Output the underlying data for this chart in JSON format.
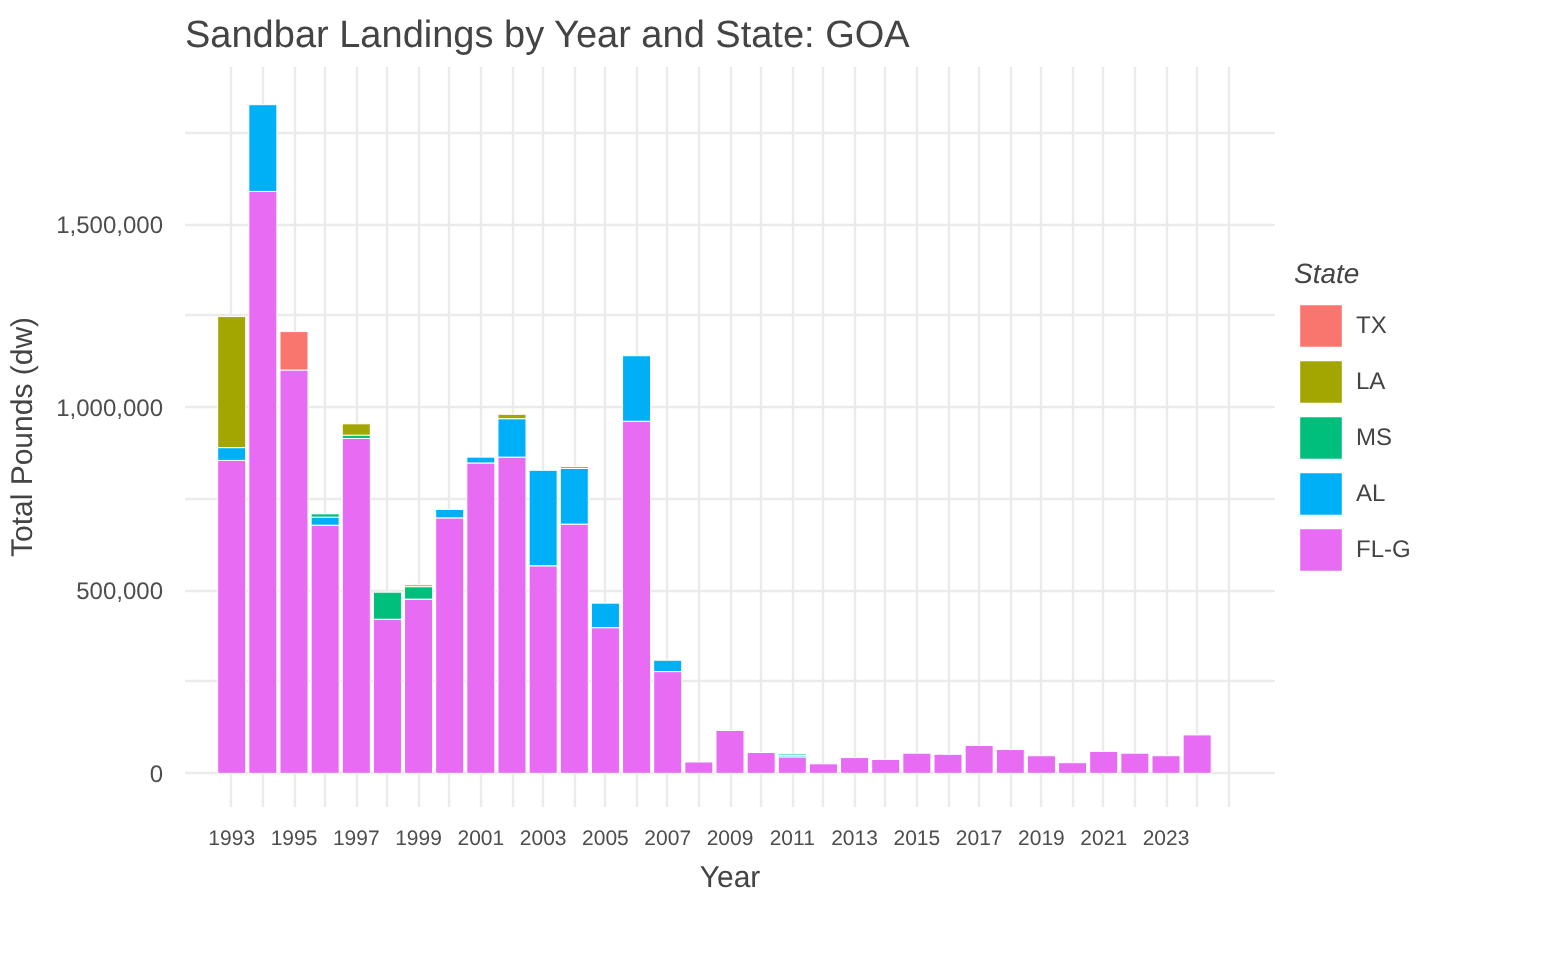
{
  "chart_data": {
    "type": "bar",
    "stacked": true,
    "title": "Sandbar Landings by Year and State: GOA",
    "xlabel": "Year",
    "ylabel": "Total Pounds (dw)",
    "legend_title": "State",
    "legend": "right",
    "grid": true,
    "x": [
      1993,
      1994,
      1995,
      1996,
      1997,
      1998,
      1999,
      2000,
      2001,
      2002,
      2003,
      2004,
      2005,
      2006,
      2007,
      2008,
      2009,
      2010,
      2011,
      2012,
      2013,
      2014,
      2015,
      2016,
      2017,
      2018,
      2019,
      2020,
      2021,
      2022,
      2023,
      2024
    ],
    "xlim": [
      1991.5,
      2026.5
    ],
    "xticks": [
      1993,
      {
        "value": 1994,
        "label": null
      },
      1995,
      {
        "value": 1996,
        "label": null
      },
      1997,
      {
        "value": 1998,
        "label": null
      },
      1999,
      {
        "value": 2000,
        "label": null
      },
      2001,
      {
        "value": 2002,
        "label": null
      },
      2003,
      {
        "value": 2004,
        "label": null
      },
      2005,
      {
        "value": 2006,
        "label": null
      },
      2007,
      {
        "value": 2008,
        "label": null
      },
      2009,
      {
        "value": 2010,
        "label": null
      },
      2011,
      {
        "value": 2012,
        "label": null
      },
      2013,
      {
        "value": 2014,
        "label": null
      },
      2015,
      {
        "value": 2016,
        "label": null
      },
      2017,
      {
        "value": 2018,
        "label": null
      },
      2019,
      {
        "value": 2020,
        "label": null
      },
      2021,
      {
        "value": 2022,
        "label": null
      },
      2023,
      {
        "value": 2024,
        "label": null
      },
      {
        "value": 2025,
        "label": null
      }
    ],
    "ylim": [
      -92000,
      1930000
    ],
    "yticks": [
      {
        "value": 0,
        "label": "0"
      },
      {
        "value": 250000,
        "label": null
      },
      {
        "value": 500000,
        "label": "500,000"
      },
      {
        "value": 750000,
        "label": null
      },
      {
        "value": 1000000,
        "label": "1,000,000"
      },
      {
        "value": 1250000,
        "label": null
      },
      {
        "value": 1500000,
        "label": "1,500,000"
      },
      {
        "value": 1750000,
        "label": null
      }
    ],
    "series": [
      {
        "name": "FL-G",
        "color": "#e76bf3",
        "values": [
          855000,
          1590000,
          1102000,
          678000,
          915000,
          421000,
          476000,
          698000,
          848000,
          864000,
          567000,
          681000,
          398000,
          962000,
          278000,
          31000,
          117000,
          57000,
          45000,
          26000,
          43000,
          38000,
          55000,
          52000,
          76000,
          65000,
          48000,
          29000,
          60000,
          55000,
          48000,
          105000
        ]
      },
      {
        "name": "AL",
        "color": "#00b0f6",
        "values": [
          35000,
          237000,
          null,
          22000,
          null,
          null,
          null,
          23000,
          16000,
          105000,
          261000,
          152000,
          67000,
          179000,
          31000,
          null,
          null,
          null,
          4000,
          null,
          null,
          null,
          null,
          null,
          null,
          null,
          null,
          null,
          null,
          null,
          null,
          null
        ]
      },
      {
        "name": "MS",
        "color": "#00bf7d",
        "values": [
          null,
          null,
          null,
          9000,
          9000,
          74000,
          34000,
          null,
          null,
          null,
          null,
          null,
          null,
          null,
          null,
          null,
          null,
          null,
          4000,
          null,
          null,
          null,
          null,
          null,
          null,
          null,
          null,
          null,
          null,
          null,
          null,
          null
        ]
      },
      {
        "name": "LA",
        "color": "#a3a500",
        "values": [
          358000,
          null,
          null,
          null,
          31000,
          null,
          5000,
          null,
          null,
          12000,
          null,
          5000,
          null,
          null,
          null,
          null,
          null,
          null,
          null,
          null,
          null,
          null,
          null,
          null,
          null,
          null,
          null,
          null,
          null,
          null,
          null,
          null
        ]
      },
      {
        "name": "TX",
        "color": "#f8766d",
        "values": [
          null,
          null,
          105000,
          null,
          null,
          null,
          null,
          null,
          null,
          null,
          null,
          null,
          null,
          null,
          null,
          null,
          null,
          null,
          null,
          null,
          null,
          null,
          null,
          null,
          null,
          null,
          null,
          null,
          null,
          null,
          null,
          null
        ]
      }
    ]
  }
}
